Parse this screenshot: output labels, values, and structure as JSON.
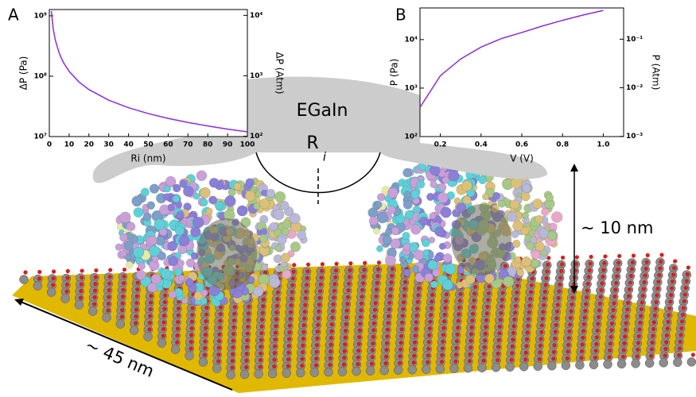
{
  "chart_data": [
    {
      "type": "line",
      "panel": "A",
      "xlabel": "Ri (nm)",
      "ylabel": "ΔP (Pa)",
      "y2label": "ΔP (Atm)",
      "x": [
        1,
        2,
        3,
        5,
        7,
        10,
        15,
        20,
        30,
        40,
        50,
        60,
        70,
        80,
        90,
        100
      ],
      "values": [
        1200000000,
        600000000,
        400000000,
        240000000,
        171000000,
        120000000,
        80000000,
        60000000,
        40000000,
        30000000,
        24000000,
        20000000,
        17100000,
        15000000,
        13300000,
        12000000
      ],
      "color": "#8a2be2",
      "xlim": [
        0,
        100
      ],
      "xticks": [
        0,
        10,
        20,
        30,
        40,
        50,
        60,
        70,
        80,
        90,
        100
      ],
      "ylim": [
        10000000,
        1270000000
      ],
      "ylog": true,
      "yticks": [
        {
          "value": 10000000,
          "label": "10⁷"
        },
        {
          "value": 100000000,
          "label": "10⁸"
        },
        {
          "value": 1000000000,
          "label": "10⁹"
        }
      ],
      "y2lim": [
        98.7,
        12500
      ],
      "y2log": true,
      "y2ticks": [
        {
          "value": 100,
          "label": "10²"
        },
        {
          "value": 1000,
          "label": "10³"
        },
        {
          "value": 10000,
          "label": "10⁴"
        }
      ]
    },
    {
      "type": "line",
      "panel": "B",
      "xlabel": "V (V)",
      "ylabel": "P (Pa)",
      "y2label": "P (Atm)",
      "x": [
        0.1,
        0.2,
        0.3,
        0.4,
        0.5,
        0.6,
        0.7,
        0.8,
        0.9,
        1.0
      ],
      "values": [
        400,
        1800,
        4000,
        7000,
        10500,
        14000,
        19000,
        25000,
        32000,
        40000
      ],
      "color": "#8a2be2",
      "xlim": [
        0.1,
        1.1
      ],
      "xticks": [
        0.2,
        0.4,
        0.6,
        0.8,
        {
          "value": 1,
          "label": "1.0"
        }
      ],
      "ylim": [
        100,
        45000
      ],
      "ylog": true,
      "yticks": [
        {
          "value": 100,
          "label": "10²"
        },
        {
          "value": 1000,
          "label": "10³"
        },
        {
          "value": 10000,
          "label": "10⁴"
        }
      ],
      "y2lim": [
        0.00099,
        0.44
      ],
      "y2log": true,
      "y2ticks": [
        {
          "value": 0.001,
          "label": "10⁻³"
        },
        {
          "value": 0.01,
          "label": "10⁻²"
        },
        {
          "value": 0.1,
          "label": "10⁻¹"
        }
      ]
    }
  ],
  "annotations": {
    "material": "EGaIn",
    "radius": "R",
    "radius_index": "i",
    "height": "~ 10 nm",
    "width": "~ 45 nm"
  }
}
